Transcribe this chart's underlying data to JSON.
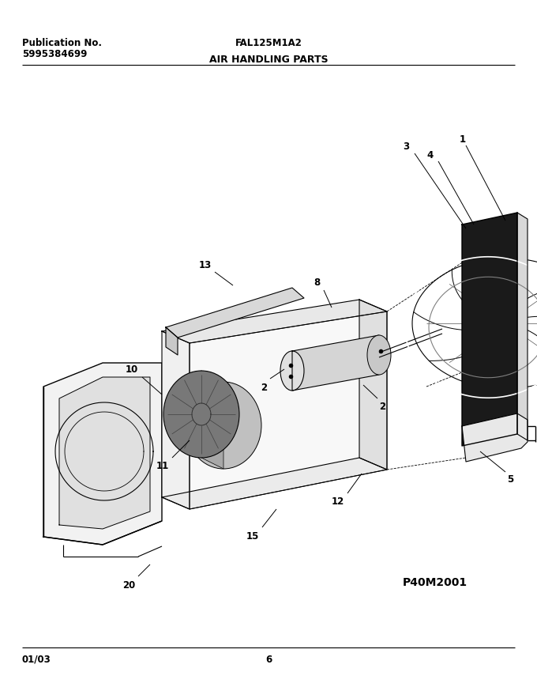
{
  "title_left_line1": "Publication No.",
  "title_left_line2": "5995384699",
  "title_center": "FAL125M1A2",
  "subtitle": "AIR HANDLING PARTS",
  "footer_left": "01/03",
  "footer_center": "6",
  "watermark": "P40M2001",
  "bg_color": "#ffffff",
  "line_color": "#000000",
  "text_color": "#000000",
  "title_fontsize": 8.5,
  "label_fontsize": 8.5,
  "subtitle_fontsize": 9
}
